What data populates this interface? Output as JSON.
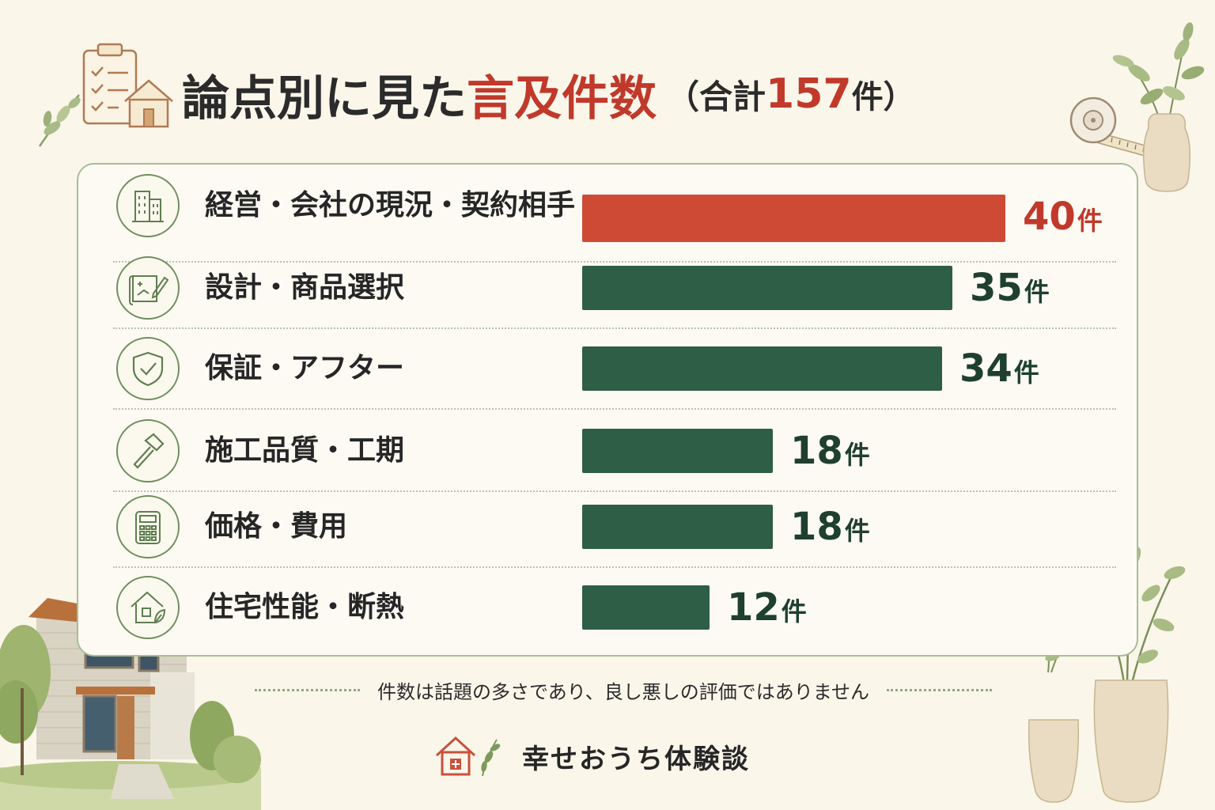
{
  "title": {
    "main": "論点別に見た",
    "accent": "言及件数",
    "sub_open": "（合計",
    "total": "157",
    "unit": "件）"
  },
  "chart_data": {
    "type": "bar",
    "orientation": "horizontal",
    "title": "論点別に見た言及件数（合計157件）",
    "categories": [
      "経営・会社の現況・契約相手",
      "設計・商品選択",
      "保証・アフター",
      "施工品質・工期",
      "価格・費用",
      "住宅性能・断熱"
    ],
    "values": [
      40,
      35,
      34,
      18,
      18,
      12
    ],
    "value_suffix": "件",
    "value_labels": [
      "40件",
      "35件",
      "34件",
      "18件",
      "18件",
      "12件"
    ],
    "icons": [
      "building-icon",
      "blueprint-icon",
      "shield-check-icon",
      "hammer-icon",
      "calculator-icon",
      "eco-house-icon"
    ],
    "colors": [
      "#cf4a35",
      "#2e5e45",
      "#2e5e45",
      "#2e5e45",
      "#2e5e45",
      "#2e5e45"
    ],
    "value_colors": [
      "#c0392b",
      "#1f3f2f",
      "#1f3f2f",
      "#1f3f2f",
      "#1f3f2f",
      "#1f3f2f"
    ],
    "xlim": [
      0,
      40
    ],
    "grid": false,
    "legend": "none"
  },
  "footnote": "件数は話題の多さであり、良し悪しの評価ではありません",
  "brand": {
    "name": "幸せおうち体験談",
    "icon": "house-plus-icon"
  },
  "decorations": [
    "clipboard-house-icon",
    "leaf-sprig-icon",
    "potted-plant-icon",
    "tape-measure-icon",
    "house-illustration",
    "potted-tree-icon"
  ]
}
